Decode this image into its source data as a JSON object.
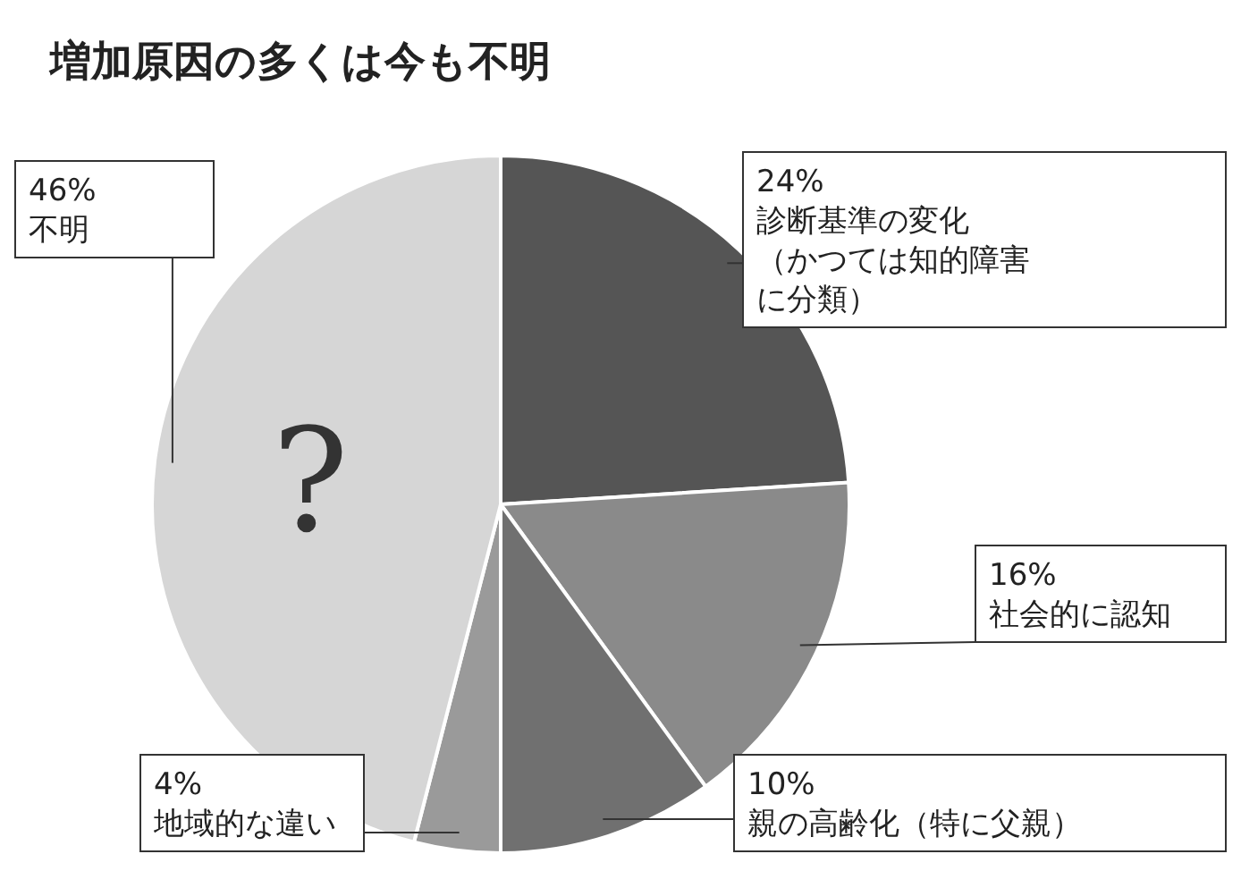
{
  "chart_data": {
    "type": "pie",
    "title": "増加原因の多くは今も不明",
    "categories": [
      "診断基準の変化（かつては知的障害に分類）",
      "社会的に認知",
      "親の高齢化（特に父親）",
      "地域的な違い",
      "不明"
    ],
    "values": [
      24,
      16,
      10,
      4,
      46
    ],
    "colors": [
      "#555555",
      "#8a8a8a",
      "#707070",
      "#9a9a9a",
      "#d6d6d6"
    ],
    "value_labels": [
      "24%",
      "16%",
      "10%",
      "4%",
      "46%"
    ],
    "annotations": [
      "?"
    ]
  }
}
